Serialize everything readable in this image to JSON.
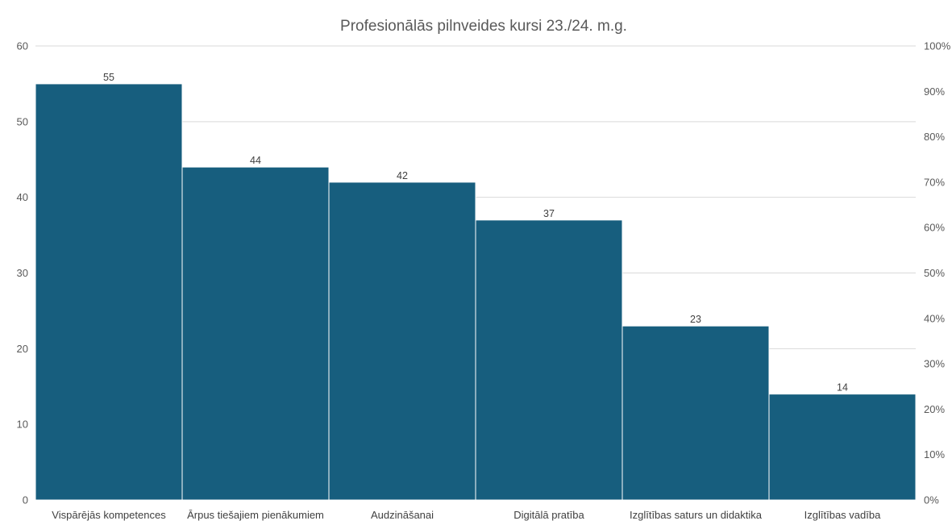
{
  "colors": {
    "bar": "#175e7e",
    "bar_border": "#ffffff",
    "grid": "#d9d9d9",
    "text": "#595959"
  },
  "chart_data": {
    "type": "bar",
    "title": "Profesionālās pilnveides kursi 23./24. m.g.",
    "categories": [
      "Vispārējās kompetences",
      "Ārpus tiešajiem pienākumiem",
      "Audzināšanai",
      "Digitālā pratība",
      "Izglītības saturs un didaktika",
      "Izglītības vadība"
    ],
    "values": [
      55,
      44,
      42,
      37,
      23,
      14
    ],
    "data_labels": [
      "55",
      "44",
      "42",
      "37",
      "23",
      "14"
    ],
    "ylim": [
      0,
      60
    ],
    "y_ticks": [
      "0",
      "10",
      "20",
      "30",
      "40",
      "50",
      "60"
    ],
    "y2lim": [
      0,
      100
    ],
    "y2_ticks": [
      "0%",
      "10%",
      "20%",
      "30%",
      "40%",
      "50%",
      "60%",
      "70%",
      "80%",
      "90%",
      "100%"
    ],
    "grid": true,
    "legend": "none"
  }
}
